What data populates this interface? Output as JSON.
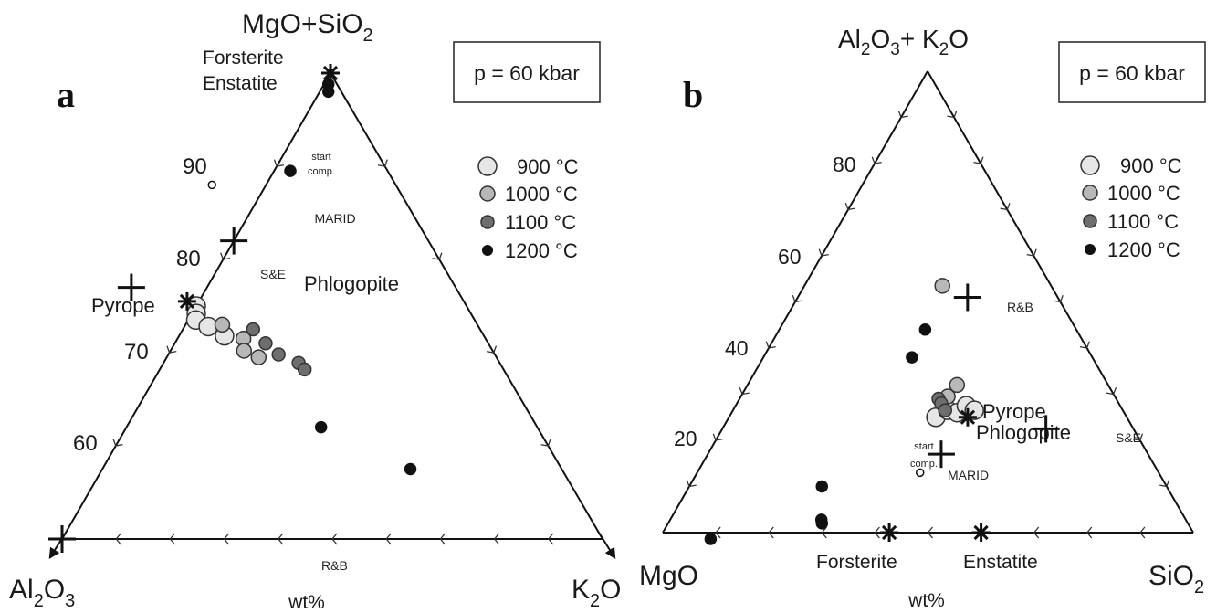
{
  "chart_data": [
    {
      "type": "scatter",
      "panel_label": "a",
      "subtype": "ternary",
      "apices": {
        "top": "MgO+SiO2",
        "left": "Al2O3",
        "right": "K2O"
      },
      "apex_parts": {
        "top": [
          "MgO+SiO",
          "2",
          ""
        ],
        "left": [
          "Al",
          "2",
          "O",
          "3"
        ],
        "right": [
          "K",
          "2",
          "O"
        ]
      },
      "unit_label": "wt%",
      "pressure_label": "p = 60 kbar",
      "axis_ticks": [
        "90",
        "80",
        "70",
        "60"
      ],
      "axis_tick_values": [
        90,
        80,
        70,
        60
      ],
      "axis_range_top": [
        50,
        100
      ],
      "legend": [
        {
          "label": "900 °C",
          "color": "#e6e6e6"
        },
        {
          "label": "1000 °C",
          "color": "#b8b8b8"
        },
        {
          "label": "1100 °C",
          "color": "#6e6e6e"
        },
        {
          "label": "1200 °C",
          "color": "#111111"
        }
      ],
      "minerals": [
        {
          "label": "Forsterite",
          "label2": "Enstatite",
          "top": 100,
          "al": 0
        },
        {
          "label": "Pyrope",
          "top": 75,
          "al": 25
        },
        {
          "label": "Phlogopite",
          "top": 75.5,
          "al": 12.8
        }
      ],
      "reference_points": [
        {
          "label": "MARID",
          "top": 82,
          "al": 9
        },
        {
          "label": "S&E",
          "top": 77,
          "al": 15
        },
        {
          "label": "R&B",
          "top": 50,
          "al": 25
        }
      ],
      "start_comp": {
        "label_line1": "start",
        "label_line2": "comp.",
        "top": 88,
        "al": 8.5
      },
      "series": [
        {
          "name": "900 °C",
          "points": [
            [
              75,
              12.5
            ],
            [
              74.2,
              12.7
            ],
            [
              73.5,
              12.9
            ],
            [
              72.8,
              12.5
            ],
            [
              71.8,
              12
            ]
          ]
        },
        {
          "name": "1000 °C",
          "points": [
            [
              73,
              11.8
            ],
            [
              71.5,
              11.2
            ],
            [
              70.2,
              11.5
            ],
            [
              69.5,
              11
            ]
          ]
        },
        {
          "name": "1100 °C",
          "points": [
            [
              72.5,
              10.5
            ],
            [
              71,
              10.3
            ],
            [
              69.8,
              10
            ],
            [
              68.9,
              9.3
            ],
            [
              68.2,
              9.2
            ]
          ]
        },
        {
          "name": "1200 °C",
          "points": [
            [
              98.8,
              0.4
            ],
            [
              98,
              0.6
            ],
            [
              89.5,
              4.5
            ],
            [
              62,
              10
            ],
            [
              57.5,
              7
            ],
            [
              50,
              -5
            ]
          ]
        }
      ]
    },
    {
      "type": "scatter",
      "panel_label": "b",
      "subtype": "ternary",
      "apices": {
        "top": "Al2O3+K2O",
        "left": "MgO",
        "right": "SiO2"
      },
      "apex_parts": {
        "top": [
          "Al",
          "2",
          "O",
          "3",
          "+ K",
          "2",
          "O"
        ],
        "left": [
          "MgO"
        ],
        "right": [
          "SiO",
          "2"
        ]
      },
      "unit_label": "wt%",
      "pressure_label": "p = 60 kbar",
      "axis_ticks": [
        "80",
        "60",
        "40",
        "20"
      ],
      "axis_tick_values": [
        80,
        60,
        40,
        20
      ],
      "legend": [
        {
          "label": "900 °C",
          "color": "#e6e6e6"
        },
        {
          "label": "1000 °C",
          "color": "#b8b8b8"
        },
        {
          "label": "1100 °C",
          "color": "#6e6e6e"
        },
        {
          "label": "1200 °C",
          "color": "#111111"
        }
      ],
      "minerals": [
        {
          "label": "Forsterite",
          "top": 0,
          "si": 42.7
        },
        {
          "label": "Enstatite",
          "top": 0,
          "si": 60
        },
        {
          "label": "Pyrope",
          "label2": "Phlogopite",
          "top": 25,
          "si": 45
        }
      ],
      "reference_points": [
        {
          "label": "MARID",
          "top": 17,
          "si": 44
        },
        {
          "label": "S&E",
          "top": 22.5,
          "si": 61
        },
        {
          "label": "R&B",
          "top": 51,
          "si": 32
        }
      ],
      "start_comp": {
        "label_line1": "start",
        "label_line2": "comp.",
        "top": 13,
        "si": 42
      },
      "series": [
        {
          "name": "900 °C",
          "points": [
            [
              25,
              39
            ],
            [
              26.5,
              40.5
            ],
            [
              26,
              42.5
            ],
            [
              27.5,
              43.5
            ],
            [
              26.5,
              45.5
            ]
          ]
        },
        {
          "name": "1000 °C",
          "points": [
            [
              53.5,
              26
            ],
            [
              32,
              39.5
            ],
            [
              29.5,
              39
            ]
          ]
        },
        {
          "name": "1100 °C",
          "points": [
            [
              29,
              37.5
            ],
            [
              28,
              38.5
            ],
            [
              26.5,
              40
            ]
          ]
        },
        {
          "name": "1200 °C",
          "points": [
            [
              44,
              27.5
            ],
            [
              38,
              28
            ],
            [
              10,
              25
            ],
            [
              2.8,
              28.5
            ],
            [
              2,
              29
            ]
          ]
        }
      ]
    }
  ]
}
